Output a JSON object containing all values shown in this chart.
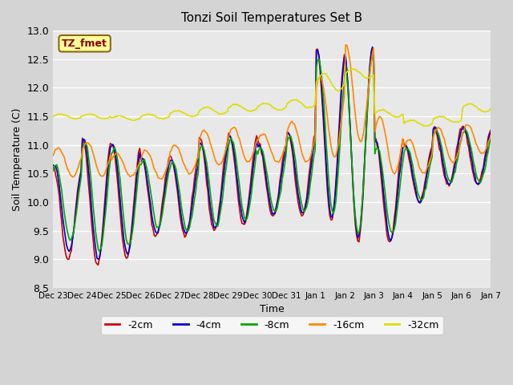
{
  "title": "Tonzi Soil Temperatures Set B",
  "xlabel": "Time",
  "ylabel": "Soil Temperature (C)",
  "ylim": [
    8.5,
    13.0
  ],
  "yticks": [
    8.5,
    9.0,
    9.5,
    10.0,
    10.5,
    11.0,
    11.5,
    12.0,
    12.5,
    13.0
  ],
  "xtick_labels": [
    "Dec 23",
    "Dec 24",
    "Dec 25",
    "Dec 26",
    "Dec 27",
    "Dec 28",
    "Dec 29",
    "Dec 30",
    "Dec 31",
    "Jan 1",
    "Jan 2",
    "Jan 3",
    "Jan 4",
    "Jan 5",
    "Jan 6",
    "Jan 7"
  ],
  "series_colors": [
    "#cc0000",
    "#0000cc",
    "#00aa00",
    "#ff8800",
    "#dddd00"
  ],
  "series_labels": [
    "-2cm",
    "-4cm",
    "-8cm",
    "-16cm",
    "-32cm"
  ],
  "legend_label": "TZ_fmet",
  "legend_label_color": "#8b0000",
  "legend_box_color": "#ffff99",
  "annotation_box_edge": "#8b6914",
  "fig_bg_color": "#d4d4d4",
  "plot_bg_color": "#e8e8e8",
  "grid_color": "#ffffff",
  "n_days": 15,
  "pts_per_day": 24
}
